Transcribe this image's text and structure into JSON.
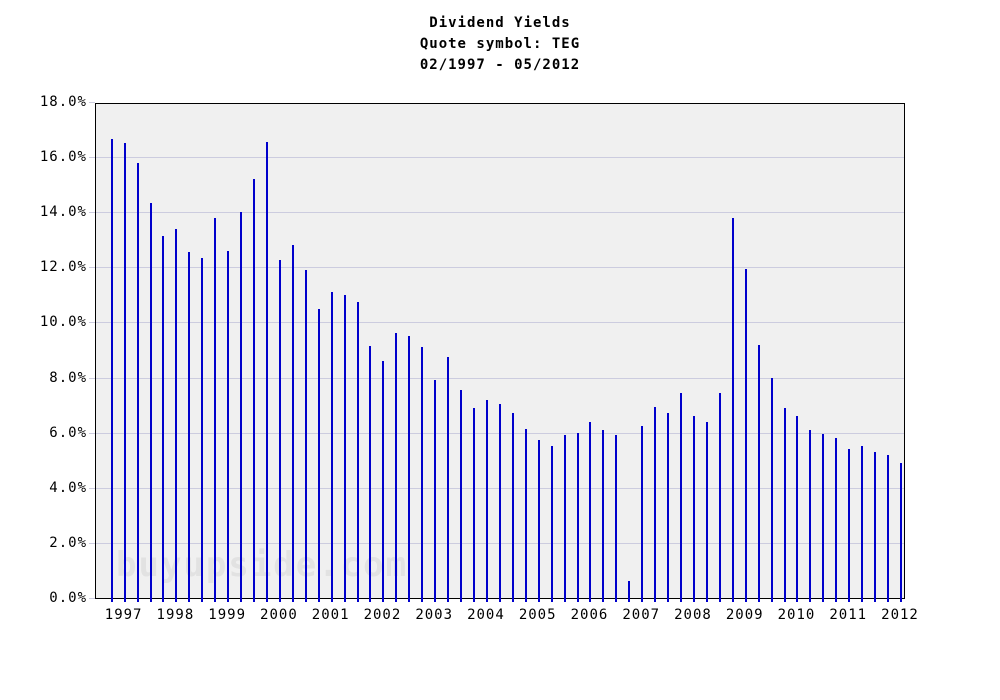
{
  "title": {
    "line1": "Dividend Yields",
    "line2": "Quote symbol: TEG",
    "line3": "02/1997 - 05/2012"
  },
  "watermark": "buyupside.com",
  "chart_data": {
    "type": "bar",
    "title": "Dividend Yields",
    "subtitle": "Quote symbol: TEG",
    "date_range": "02/1997 - 05/2012",
    "ylim": [
      0,
      18
    ],
    "y_tick_labels": [
      "0.0%",
      "2.0%",
      "4.0%",
      "6.0%",
      "8.0%",
      "10.0%",
      "12.0%",
      "14.0%",
      "16.0%",
      "18.0%"
    ],
    "x_tick_labels": [
      "1997",
      "1998",
      "1999",
      "2000",
      "2001",
      "2002",
      "2003",
      "2004",
      "2005",
      "2006",
      "2007",
      "2008",
      "2009",
      "2010",
      "2011",
      "2012"
    ],
    "grid": true,
    "legend": false,
    "bar_color": "#0000cc",
    "grid_color": "#ccccdf",
    "plot_bg": "#f0f0f0",
    "points": [
      {
        "date": "02/1997",
        "value": 16.65
      },
      {
        "date": "05/1997",
        "value": 16.5
      },
      {
        "date": "08/1997",
        "value": 15.8
      },
      {
        "date": "11/1997",
        "value": 14.35
      },
      {
        "date": "02/1998",
        "value": 13.15
      },
      {
        "date": "05/1998",
        "value": 13.4
      },
      {
        "date": "08/1998",
        "value": 12.55
      },
      {
        "date": "11/1998",
        "value": 12.35
      },
      {
        "date": "02/1999",
        "value": 13.8
      },
      {
        "date": "05/1999",
        "value": 12.6
      },
      {
        "date": "08/1999",
        "value": 14.0
      },
      {
        "date": "11/1999",
        "value": 15.2
      },
      {
        "date": "02/2000",
        "value": 16.55
      },
      {
        "date": "05/2000",
        "value": 12.25
      },
      {
        "date": "08/2000",
        "value": 12.8
      },
      {
        "date": "11/2000",
        "value": 11.9
      },
      {
        "date": "02/2001",
        "value": 10.5
      },
      {
        "date": "05/2001",
        "value": 11.1
      },
      {
        "date": "08/2001",
        "value": 11.0
      },
      {
        "date": "11/2001",
        "value": 10.75
      },
      {
        "date": "02/2002",
        "value": 9.15
      },
      {
        "date": "05/2002",
        "value": 8.6
      },
      {
        "date": "08/2002",
        "value": 9.6
      },
      {
        "date": "11/2002",
        "value": 9.5
      },
      {
        "date": "02/2003",
        "value": 9.1
      },
      {
        "date": "05/2003",
        "value": 7.9
      },
      {
        "date": "08/2003",
        "value": 8.75
      },
      {
        "date": "11/2003",
        "value": 7.55
      },
      {
        "date": "02/2004",
        "value": 6.9
      },
      {
        "date": "05/2004",
        "value": 7.2
      },
      {
        "date": "08/2004",
        "value": 7.05
      },
      {
        "date": "11/2004",
        "value": 6.7
      },
      {
        "date": "02/2005",
        "value": 6.15
      },
      {
        "date": "05/2005",
        "value": 5.75
      },
      {
        "date": "08/2005",
        "value": 5.5
      },
      {
        "date": "11/2005",
        "value": 5.9
      },
      {
        "date": "02/2006",
        "value": 6.0
      },
      {
        "date": "05/2006",
        "value": 6.4
      },
      {
        "date": "08/2006",
        "value": 6.1
      },
      {
        "date": "11/2006",
        "value": 5.9
      },
      {
        "date": "02/2007",
        "value": 0.6
      },
      {
        "date": "05/2007",
        "value": 6.25
      },
      {
        "date": "08/2007",
        "value": 6.95
      },
      {
        "date": "11/2007",
        "value": 6.7
      },
      {
        "date": "02/2008",
        "value": 7.45
      },
      {
        "date": "05/2008",
        "value": 6.6
      },
      {
        "date": "08/2008",
        "value": 6.4
      },
      {
        "date": "11/2008",
        "value": 7.45
      },
      {
        "date": "02/2009",
        "value": 13.8
      },
      {
        "date": "05/2009",
        "value": 11.95
      },
      {
        "date": "08/2009",
        "value": 9.2
      },
      {
        "date": "11/2009",
        "value": 8.0
      },
      {
        "date": "02/2010",
        "value": 6.9
      },
      {
        "date": "05/2010",
        "value": 6.6
      },
      {
        "date": "08/2010",
        "value": 6.1
      },
      {
        "date": "11/2010",
        "value": 5.95
      },
      {
        "date": "02/2011",
        "value": 5.8
      },
      {
        "date": "05/2011",
        "value": 5.4
      },
      {
        "date": "08/2011",
        "value": 5.5
      },
      {
        "date": "11/2011",
        "value": 5.3
      },
      {
        "date": "02/2012",
        "value": 5.2
      },
      {
        "date": "05/2012",
        "value": 4.9
      }
    ]
  }
}
